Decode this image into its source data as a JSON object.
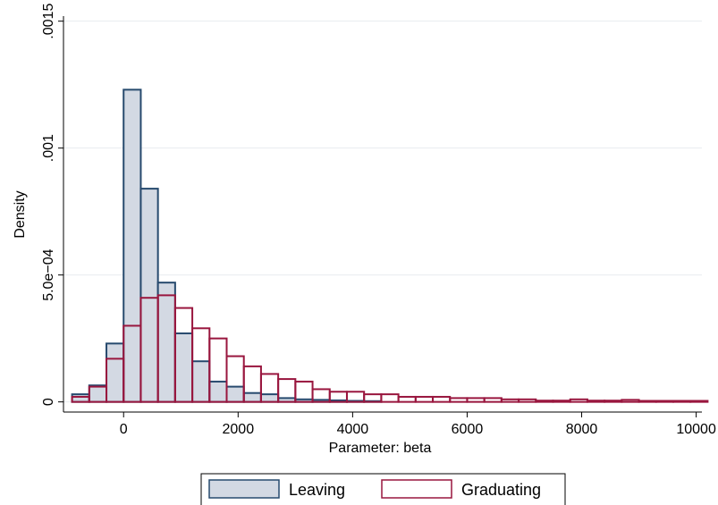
{
  "chart_data": {
    "type": "bar",
    "subtype": "histogram",
    "title": "",
    "xlabel": "Parameter: beta",
    "ylabel": "Density",
    "xlim": [
      -1050,
      10100
    ],
    "ylim": [
      -4e-05,
      0.00152
    ],
    "x_ticks": [
      {
        "value": 0,
        "label": "0"
      },
      {
        "value": 2000,
        "label": "2000"
      },
      {
        "value": 4000,
        "label": "4000"
      },
      {
        "value": 6000,
        "label": "6000"
      },
      {
        "value": 8000,
        "label": "8000"
      },
      {
        "value": 10000,
        "label": "10000"
      }
    ],
    "y_ticks": [
      {
        "value": 0,
        "label": "0"
      },
      {
        "value": 0.0005,
        "label": "5.0e−04"
      },
      {
        "value": 0.001,
        "label": ".001"
      },
      {
        "value": 0.0015,
        "label": ".0015"
      }
    ],
    "grid": "horizontal",
    "legend_position": "bottom",
    "series": [
      {
        "name": "Leaving",
        "fill": "#d3d9e3",
        "stroke": "#274a6e",
        "bins": [
          {
            "x0": -900,
            "x1": -600,
            "y": 3e-05
          },
          {
            "x0": -600,
            "x1": -300,
            "y": 6.5e-05
          },
          {
            "x0": -300,
            "x1": 0,
            "y": 0.00023
          },
          {
            "x0": 0,
            "x1": 300,
            "y": 0.00123
          },
          {
            "x0": 300,
            "x1": 600,
            "y": 0.00084
          },
          {
            "x0": 600,
            "x1": 900,
            "y": 0.00047
          },
          {
            "x0": 900,
            "x1": 1200,
            "y": 0.00027
          },
          {
            "x0": 1200,
            "x1": 1500,
            "y": 0.00016
          },
          {
            "x0": 1500,
            "x1": 1800,
            "y": 8e-05
          },
          {
            "x0": 1800,
            "x1": 2100,
            "y": 6e-05
          },
          {
            "x0": 2100,
            "x1": 2400,
            "y": 3.5e-05
          },
          {
            "x0": 2400,
            "x1": 2700,
            "y": 3e-05
          },
          {
            "x0": 2700,
            "x1": 3000,
            "y": 1.5e-05
          },
          {
            "x0": 3000,
            "x1": 3300,
            "y": 1e-05
          },
          {
            "x0": 3300,
            "x1": 3600,
            "y": 8e-06
          },
          {
            "x0": 3600,
            "x1": 3900,
            "y": 6e-06
          },
          {
            "x0": 3900,
            "x1": 4200,
            "y": 4e-06
          },
          {
            "x0": 4200,
            "x1": 4500,
            "y": 3e-06
          }
        ]
      },
      {
        "name": "Graduating",
        "fill": "none",
        "stroke": "#99163e",
        "bins": [
          {
            "x0": -900,
            "x1": -600,
            "y": 2e-05
          },
          {
            "x0": -600,
            "x1": -300,
            "y": 6e-05
          },
          {
            "x0": -300,
            "x1": 0,
            "y": 0.00017
          },
          {
            "x0": 0,
            "x1": 300,
            "y": 0.0003
          },
          {
            "x0": 300,
            "x1": 600,
            "y": 0.00041
          },
          {
            "x0": 600,
            "x1": 900,
            "y": 0.00042
          },
          {
            "x0": 900,
            "x1": 1200,
            "y": 0.00037
          },
          {
            "x0": 1200,
            "x1": 1500,
            "y": 0.00029
          },
          {
            "x0": 1500,
            "x1": 1800,
            "y": 0.00025
          },
          {
            "x0": 1800,
            "x1": 2100,
            "y": 0.00018
          },
          {
            "x0": 2100,
            "x1": 2400,
            "y": 0.00014
          },
          {
            "x0": 2400,
            "x1": 2700,
            "y": 0.00011
          },
          {
            "x0": 2700,
            "x1": 3000,
            "y": 9e-05
          },
          {
            "x0": 3000,
            "x1": 3300,
            "y": 8e-05
          },
          {
            "x0": 3300,
            "x1": 3600,
            "y": 5e-05
          },
          {
            "x0": 3600,
            "x1": 3900,
            "y": 4e-05
          },
          {
            "x0": 3900,
            "x1": 4200,
            "y": 4e-05
          },
          {
            "x0": 4200,
            "x1": 4500,
            "y": 3e-05
          },
          {
            "x0": 4500,
            "x1": 4800,
            "y": 3e-05
          },
          {
            "x0": 4800,
            "x1": 5100,
            "y": 2e-05
          },
          {
            "x0": 5100,
            "x1": 5400,
            "y": 2e-05
          },
          {
            "x0": 5400,
            "x1": 5700,
            "y": 2e-05
          },
          {
            "x0": 5700,
            "x1": 6000,
            "y": 1.5e-05
          },
          {
            "x0": 6000,
            "x1": 6300,
            "y": 1.5e-05
          },
          {
            "x0": 6300,
            "x1": 6600,
            "y": 1.5e-05
          },
          {
            "x0": 6600,
            "x1": 6900,
            "y": 1e-05
          },
          {
            "x0": 6900,
            "x1": 7200,
            "y": 1e-05
          },
          {
            "x0": 7200,
            "x1": 7500,
            "y": 5e-06
          },
          {
            "x0": 7500,
            "x1": 7800,
            "y": 5e-06
          },
          {
            "x0": 7800,
            "x1": 8100,
            "y": 1e-05
          },
          {
            "x0": 8100,
            "x1": 8400,
            "y": 5e-06
          },
          {
            "x0": 8400,
            "x1": 8700,
            "y": 5e-06
          },
          {
            "x0": 8700,
            "x1": 9000,
            "y": 8e-06
          },
          {
            "x0": 9000,
            "x1": 9300,
            "y": 4e-06
          },
          {
            "x0": 9300,
            "x1": 9600,
            "y": 4e-06
          },
          {
            "x0": 9600,
            "x1": 9900,
            "y": 4e-06
          },
          {
            "x0": 9900,
            "x1": 10200,
            "y": 4e-06
          }
        ]
      }
    ]
  }
}
